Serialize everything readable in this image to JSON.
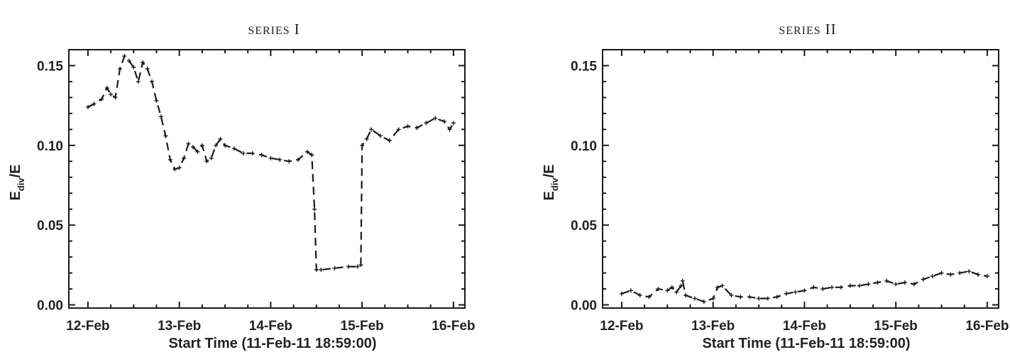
{
  "chart_data": [
    {
      "type": "line",
      "title_small_caps": "SERIES",
      "title_numeral": "I",
      "xlabel": "Start Time (11-Feb-11 18:59:00)",
      "ylabel_main": "E",
      "ylabel_sub": "div",
      "ylabel_tail": "/E",
      "xlim": [
        "2011-02-11T18:59",
        "2011-02-16T03:00"
      ],
      "ylim": [
        -0.002,
        0.16
      ],
      "xticks": [
        {
          "date": "2011-02-12T00:00",
          "label": "12-Feb"
        },
        {
          "date": "2011-02-13T00:00",
          "label": "13-Feb"
        },
        {
          "date": "2011-02-14T00:00",
          "label": "14-Feb"
        },
        {
          "date": "2011-02-15T00:00",
          "label": "15-Feb"
        },
        {
          "date": "2011-02-16T00:00",
          "label": "16-Feb"
        }
      ],
      "yticks": [
        {
          "value": 0.0,
          "label": "0.00"
        },
        {
          "value": 0.05,
          "label": "0.05"
        },
        {
          "value": 0.1,
          "label": "0.10"
        },
        {
          "value": 0.15,
          "label": "0.15"
        }
      ],
      "series": [
        {
          "x": [
            "2011-02-12T00:00",
            "2011-02-12T01:36",
            "2011-02-12T03:36",
            "2011-02-12T05:00",
            "2011-02-12T06:00",
            "2011-02-12T07:12",
            "2011-02-12T08:24",
            "2011-02-12T09:36",
            "2011-02-12T10:48",
            "2011-02-12T12:00",
            "2011-02-12T13:12",
            "2011-02-12T14:24",
            "2011-02-12T15:36",
            "2011-02-12T16:48",
            "2011-02-12T18:00",
            "2011-02-12T19:12",
            "2011-02-12T20:24",
            "2011-02-12T21:36",
            "2011-02-12T22:48",
            "2011-02-13T00:00",
            "2011-02-13T01:12",
            "2011-02-13T02:24",
            "2011-02-13T03:36",
            "2011-02-13T04:48",
            "2011-02-13T06:00",
            "2011-02-13T07:12",
            "2011-02-13T08:24",
            "2011-02-13T09:36",
            "2011-02-13T10:48",
            "2011-02-13T12:00",
            "2011-02-13T14:24",
            "2011-02-13T16:48",
            "2011-02-13T19:12",
            "2011-02-13T21:36",
            "2011-02-14T00:00",
            "2011-02-14T02:24",
            "2011-02-14T04:48",
            "2011-02-14T07:12",
            "2011-02-14T09:36",
            "2011-02-14T10:48",
            "2011-02-14T11:30",
            "2011-02-14T12:00",
            "2011-02-14T13:12",
            "2011-02-14T16:48",
            "2011-02-14T20:24",
            "2011-02-14T22:48",
            "2011-02-14T23:40",
            "2011-02-15T00:00",
            "2011-02-15T01:12",
            "2011-02-15T02:24",
            "2011-02-15T04:48",
            "2011-02-15T07:12",
            "2011-02-15T09:36",
            "2011-02-15T12:00",
            "2011-02-15T14:24",
            "2011-02-15T16:48",
            "2011-02-15T19:12",
            "2011-02-15T21:36",
            "2011-02-15T23:00",
            "2011-02-16T00:00"
          ],
          "y": [
            0.124,
            0.126,
            0.129,
            0.136,
            0.132,
            0.13,
            0.148,
            0.156,
            0.153,
            0.149,
            0.14,
            0.152,
            0.148,
            0.14,
            0.128,
            0.118,
            0.106,
            0.091,
            0.085,
            0.086,
            0.092,
            0.101,
            0.099,
            0.096,
            0.1,
            0.09,
            0.092,
            0.1,
            0.104,
            0.1,
            0.098,
            0.095,
            0.095,
            0.094,
            0.092,
            0.091,
            0.09,
            0.091,
            0.096,
            0.094,
            0.06,
            0.022,
            0.022,
            0.023,
            0.024,
            0.024,
            0.025,
            0.1,
            0.104,
            0.11,
            0.106,
            0.103,
            0.11,
            0.112,
            0.111,
            0.114,
            0.117,
            0.115,
            0.11,
            0.114
          ]
        }
      ]
    },
    {
      "type": "line",
      "title_small_caps": "SERIES",
      "title_numeral": "II",
      "xlabel": "Start Time (11-Feb-11 18:59:00)",
      "ylabel_main": "E",
      "ylabel_sub": "div",
      "ylabel_tail": "/E",
      "xlim": [
        "2011-02-11T18:59",
        "2011-02-16T03:00"
      ],
      "ylim": [
        -0.002,
        0.16
      ],
      "xticks": [
        {
          "date": "2011-02-12T00:00",
          "label": "12-Feb"
        },
        {
          "date": "2011-02-13T00:00",
          "label": "13-Feb"
        },
        {
          "date": "2011-02-14T00:00",
          "label": "14-Feb"
        },
        {
          "date": "2011-02-15T00:00",
          "label": "15-Feb"
        },
        {
          "date": "2011-02-16T00:00",
          "label": "16-Feb"
        }
      ],
      "yticks": [
        {
          "value": 0.0,
          "label": "0.00"
        },
        {
          "value": 0.05,
          "label": "0.05"
        },
        {
          "value": 0.1,
          "label": "0.10"
        },
        {
          "value": 0.15,
          "label": "0.15"
        }
      ],
      "series": [
        {
          "x": [
            "2011-02-12T00:00",
            "2011-02-12T02:24",
            "2011-02-12T04:48",
            "2011-02-12T07:12",
            "2011-02-12T09:36",
            "2011-02-12T12:00",
            "2011-02-12T13:12",
            "2011-02-12T14:24",
            "2011-02-12T15:36",
            "2011-02-12T16:00",
            "2011-02-12T16:48",
            "2011-02-12T19:12",
            "2011-02-12T21:36",
            "2011-02-13T00:00",
            "2011-02-13T01:12",
            "2011-02-13T02:24",
            "2011-02-13T04:48",
            "2011-02-13T07:12",
            "2011-02-13T09:36",
            "2011-02-13T12:00",
            "2011-02-13T14:24",
            "2011-02-13T16:48",
            "2011-02-13T19:12",
            "2011-02-13T21:36",
            "2011-02-14T00:00",
            "2011-02-14T02:24",
            "2011-02-14T04:48",
            "2011-02-14T07:12",
            "2011-02-14T09:36",
            "2011-02-14T12:00",
            "2011-02-14T14:24",
            "2011-02-14T16:48",
            "2011-02-14T19:12",
            "2011-02-14T21:36",
            "2011-02-15T00:00",
            "2011-02-15T02:24",
            "2011-02-15T04:48",
            "2011-02-15T07:12",
            "2011-02-15T09:36",
            "2011-02-15T12:00",
            "2011-02-15T14:24",
            "2011-02-15T16:48",
            "2011-02-15T19:12",
            "2011-02-15T21:36",
            "2011-02-16T00:00"
          ],
          "y": [
            0.007,
            0.009,
            0.006,
            0.005,
            0.01,
            0.009,
            0.011,
            0.008,
            0.012,
            0.015,
            0.006,
            0.004,
            0.002,
            0.004,
            0.011,
            0.012,
            0.006,
            0.005,
            0.005,
            0.004,
            0.004,
            0.005,
            0.007,
            0.008,
            0.009,
            0.011,
            0.01,
            0.011,
            0.011,
            0.012,
            0.012,
            0.013,
            0.014,
            0.015,
            0.013,
            0.014,
            0.013,
            0.016,
            0.018,
            0.02,
            0.019,
            0.02,
            0.021,
            0.019,
            0.018
          ]
        }
      ]
    }
  ]
}
